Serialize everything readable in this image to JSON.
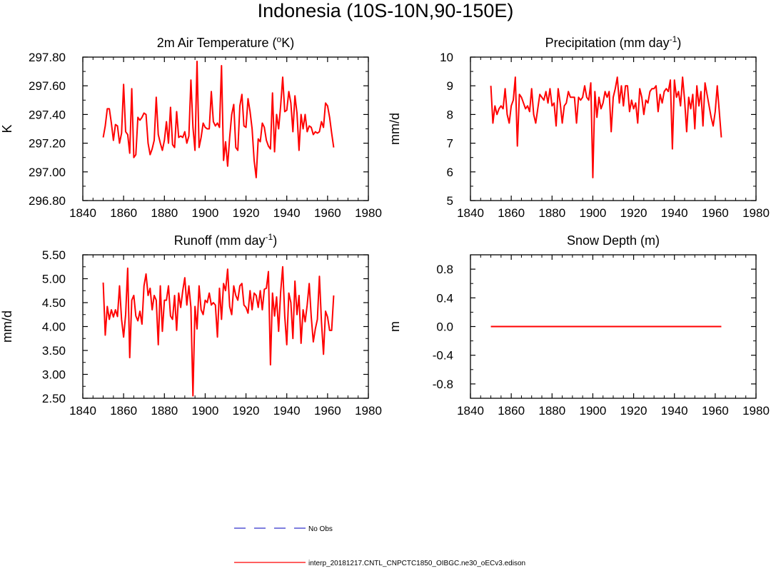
{
  "figure": {
    "title": "Indonesia (10S-10N,90-150E)"
  },
  "legend": [
    {
      "label": "No Obs",
      "color": "#3333cc",
      "dashed": true
    },
    {
      "label": "interp_20181217.CNTL_CNPCTC1850_OIBGC.ne30_oECv3.edison",
      "color": "#ff0000",
      "dashed": false
    }
  ],
  "chart_data": [
    {
      "type": "line",
      "title": "2m Air Temperature (",
      "title_sup": "o",
      "title_post": "K)",
      "ylabel": "K",
      "xlim": [
        1840,
        1980
      ],
      "ylim": [
        296.8,
        297.8
      ],
      "xticks": [
        1840,
        1860,
        1880,
        1900,
        1920,
        1940,
        1960,
        1980
      ],
      "yticks": [
        296.8,
        297.0,
        297.2,
        297.4,
        297.6,
        297.8
      ],
      "ytick_labels": [
        "296.80",
        "297.00",
        "297.20",
        "297.40",
        "297.60",
        "297.80"
      ],
      "x_start": 1850,
      "series": [
        {
          "name": "interp_20181217.CNTL_CNPCTC1850_OIBGC.ne30_oECv3.edison",
          "color": "#ff0000",
          "values": [
            297.24,
            297.32,
            297.44,
            297.44,
            297.34,
            297.22,
            297.33,
            297.32,
            297.2,
            297.27,
            297.61,
            297.28,
            297.26,
            297.13,
            297.58,
            297.1,
            297.12,
            297.38,
            297.36,
            297.38,
            297.41,
            297.4,
            297.2,
            297.12,
            297.16,
            297.22,
            297.52,
            297.26,
            297.2,
            297.15,
            297.22,
            297.35,
            297.2,
            297.45,
            297.19,
            297.17,
            297.42,
            297.24,
            297.25,
            297.24,
            297.28,
            297.2,
            297.25,
            297.64,
            297.31,
            297.15,
            297.77,
            297.17,
            297.24,
            297.34,
            297.31,
            297.3,
            297.3,
            297.56,
            297.35,
            297.32,
            297.34,
            297.31,
            297.74,
            297.08,
            297.21,
            297.04,
            297.24,
            297.4,
            297.47,
            297.17,
            297.15,
            297.46,
            297.54,
            297.32,
            297.31,
            297.51,
            297.42,
            297.3,
            297.08,
            296.96,
            297.23,
            297.21,
            297.34,
            297.31,
            297.22,
            297.18,
            297.16,
            297.55,
            297.14,
            297.4,
            297.3,
            297.46,
            297.66,
            297.42,
            297.43,
            297.56,
            297.48,
            297.28,
            297.53,
            297.41,
            297.15,
            297.4,
            297.3,
            297.4,
            297.28,
            297.32,
            297.31,
            297.26,
            297.28,
            297.27,
            297.28,
            297.35,
            297.31,
            297.48,
            297.46,
            297.38,
            297.27,
            297.17
          ]
        }
      ]
    },
    {
      "type": "line",
      "title": "Precipitation (mm day",
      "title_sup": "-1",
      "title_post": ")",
      "ylabel": "mm/d",
      "xlim": [
        1840,
        1980
      ],
      "ylim": [
        5,
        10
      ],
      "xticks": [
        1840,
        1860,
        1880,
        1900,
        1920,
        1940,
        1960,
        1980
      ],
      "yticks": [
        5,
        6,
        7,
        8,
        9,
        10
      ],
      "ytick_labels": [
        "5",
        "6",
        "7",
        "8",
        "9",
        "10"
      ],
      "x_start": 1850,
      "series": [
        {
          "name": "interp_20181217.CNTL_CNPCTC1850_OIBGC.ne30_oECv3.edison",
          "color": "#ff0000",
          "values": [
            9.0,
            7.7,
            8.3,
            8.0,
            8.2,
            8.3,
            8.2,
            8.9,
            8.0,
            7.7,
            8.3,
            8.5,
            9.3,
            6.9,
            8.7,
            8.6,
            8.4,
            8.2,
            8.3,
            8.1,
            8.9,
            8.0,
            7.7,
            8.2,
            8.7,
            8.6,
            8.5,
            8.8,
            8.4,
            8.9,
            8.3,
            8.4,
            7.6,
            8.9,
            8.4,
            7.7,
            8.3,
            8.4,
            8.8,
            8.6,
            8.6,
            8.6,
            7.7,
            8.6,
            8.5,
            8.6,
            9.0,
            8.6,
            8.5,
            9.1,
            5.8,
            8.8,
            7.9,
            8.6,
            8.2,
            8.4,
            8.8,
            8.6,
            8.8,
            7.4,
            8.6,
            8.9,
            9.3,
            8.4,
            9.0,
            8.3,
            9.0,
            9.0,
            8.1,
            8.5,
            8.2,
            8.4,
            7.7,
            8.9,
            8.6,
            8.0,
            8.5,
            8.4,
            8.8,
            8.9,
            8.9,
            9.0,
            8.1,
            8.7,
            8.4,
            8.8,
            8.9,
            8.8,
            9.2,
            6.8,
            9.2,
            8.6,
            8.8,
            8.3,
            9.3,
            8.5,
            7.4,
            8.6,
            8.2,
            8.7,
            7.5,
            9.0,
            8.3,
            8.8,
            7.6,
            9.1,
            8.7,
            8.3,
            7.9,
            7.6,
            8.1,
            9.0,
            8.1,
            7.2
          ]
        }
      ]
    },
    {
      "type": "line",
      "title": "Runoff (mm day",
      "title_sup": "-1",
      "title_post": ")",
      "ylabel": "mm/d",
      "xlim": [
        1840,
        1980
      ],
      "ylim": [
        2.5,
        5.5
      ],
      "xticks": [
        1840,
        1860,
        1880,
        1900,
        1920,
        1940,
        1960,
        1980
      ],
      "yticks": [
        2.5,
        3.0,
        3.5,
        4.0,
        4.5,
        5.0,
        5.5
      ],
      "ytick_labels": [
        "2.50",
        "3.00",
        "3.50",
        "4.00",
        "4.50",
        "5.00",
        "5.50"
      ],
      "x_start": 1850,
      "series": [
        {
          "name": "interp_20181217.CNTL_CNPCTC1850_OIBGC.ne30_oECv3.edison",
          "color": "#ff0000",
          "values": [
            4.92,
            3.82,
            4.42,
            4.15,
            4.35,
            4.2,
            4.35,
            4.21,
            4.85,
            4.15,
            3.78,
            4.25,
            5.22,
            3.35,
            4.55,
            4.65,
            4.22,
            4.12,
            4.32,
            4.05,
            4.85,
            5.1,
            4.65,
            4.8,
            4.35,
            4.65,
            4.55,
            3.62,
            4.85,
            3.9,
            4.55,
            4.55,
            4.85,
            4.22,
            4.15,
            4.65,
            3.92,
            4.7,
            4.4,
            4.75,
            5.02,
            4.45,
            4.85,
            4.4,
            2.55,
            4.42,
            3.95,
            4.85,
            4.35,
            4.25,
            4.55,
            4.5,
            4.7,
            4.45,
            4.5,
            4.45,
            3.78,
            4.8,
            4.15,
            4.9,
            4.75,
            5.2,
            4.42,
            4.25,
            4.85,
            4.65,
            4.55,
            4.85,
            4.9,
            4.45,
            4.4,
            4.28,
            4.75,
            4.35,
            4.7,
            4.65,
            4.4,
            4.75,
            4.35,
            4.78,
            4.8,
            5.15,
            3.2,
            4.7,
            4.22,
            4.62,
            3.9,
            4.72,
            5.25,
            4.22,
            3.62,
            4.7,
            4.5,
            3.75,
            4.95,
            4.25,
            4.65,
            3.65,
            4.35,
            4.1,
            4.45,
            4.9,
            4.2,
            3.68,
            3.95,
            4.15,
            5.05,
            4.1,
            3.42,
            4.32,
            4.2,
            3.92,
            3.92,
            4.65
          ]
        }
      ]
    },
    {
      "type": "line",
      "title": "Snow Depth (m)",
      "title_sup": "",
      "title_post": "",
      "ylabel": "m",
      "xlim": [
        1840,
        1980
      ],
      "ylim": [
        -1.0,
        1.0
      ],
      "xticks": [
        1840,
        1860,
        1880,
        1900,
        1920,
        1940,
        1960,
        1980
      ],
      "yticks": [
        -0.8,
        -0.4,
        0.0,
        0.4,
        0.8
      ],
      "ytick_labels": [
        "-0.8",
        "-0.4",
        "0.0",
        "0.4",
        "0.8"
      ],
      "x_start": 1850,
      "series": [
        {
          "name": "interp_20181217.CNTL_CNPCTC1850_OIBGC.ne30_oECv3.edison",
          "color": "#ff0000",
          "values": [
            0,
            0,
            0,
            0,
            0,
            0,
            0,
            0,
            0,
            0,
            0,
            0,
            0,
            0,
            0,
            0,
            0,
            0,
            0,
            0,
            0,
            0,
            0,
            0,
            0,
            0,
            0,
            0,
            0,
            0,
            0,
            0,
            0,
            0,
            0,
            0,
            0,
            0,
            0,
            0,
            0,
            0,
            0,
            0,
            0,
            0,
            0,
            0,
            0,
            0,
            0,
            0,
            0,
            0,
            0,
            0,
            0,
            0,
            0,
            0,
            0,
            0,
            0,
            0,
            0,
            0,
            0,
            0,
            0,
            0,
            0,
            0,
            0,
            0,
            0,
            0,
            0,
            0,
            0,
            0,
            0,
            0,
            0,
            0,
            0,
            0,
            0,
            0,
            0,
            0,
            0,
            0,
            0,
            0,
            0,
            0,
            0,
            0,
            0,
            0,
            0,
            0,
            0,
            0,
            0,
            0,
            0,
            0,
            0,
            0,
            0,
            0,
            0,
            0
          ]
        }
      ]
    }
  ]
}
